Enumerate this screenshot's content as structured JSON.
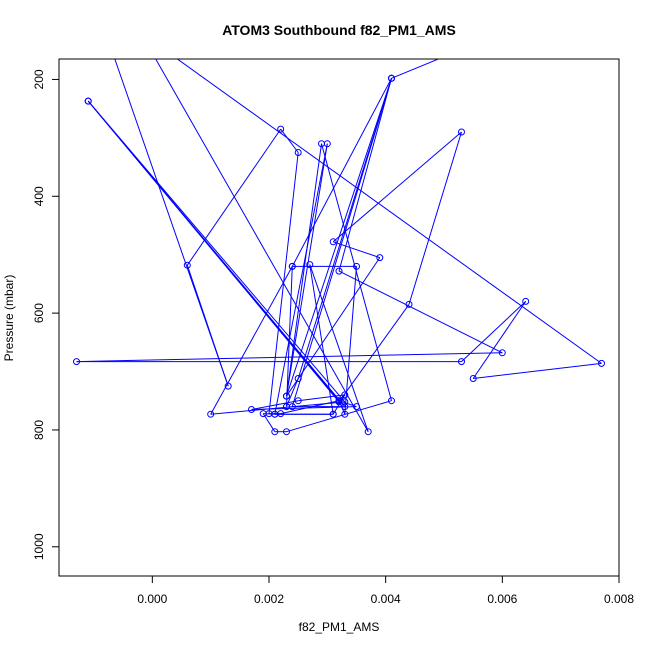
{
  "chart_data": {
    "type": "line",
    "title": "ATOM3 Southbound f82_PM1_AMS",
    "xlabel": "f82_PM1_AMS",
    "ylabel": "Pressure (mbar)",
    "xlim": [
      -0.0016,
      0.008
    ],
    "ylim": [
      1050,
      165
    ],
    "y_reversed": true,
    "x_ticks": [
      "0.000",
      "0.002",
      "0.004",
      "0.006",
      "0.008"
    ],
    "y_ticks": [
      "200",
      "400",
      "600",
      "800",
      "1000"
    ],
    "grid": false,
    "legend": "none",
    "series": [
      {
        "color": "#0000ff",
        "marker": "open-circle",
        "points": [
          [
            -0.0008,
            120
          ],
          [
            0.0013,
            725
          ],
          [
            0.0006,
            518
          ],
          [
            0.0022,
            285
          ],
          [
            0.0025,
            325
          ],
          [
            0.002,
            772
          ],
          [
            0.0022,
            772
          ],
          [
            0.0032,
            750
          ],
          [
            0.0035,
            760
          ],
          [
            0.0017,
            765
          ],
          [
            0.0025,
            750
          ],
          [
            0.0033,
            740
          ],
          [
            0.0031,
            773
          ],
          [
            0.0021,
            773
          ],
          [
            0.003,
            310
          ],
          [
            0.0023,
            742
          ],
          [
            0.0041,
            198
          ],
          [
            0.0032,
            528
          ],
          [
            0.006,
            668
          ],
          [
            -0.0013,
            683
          ],
          [
            0.0053,
            683
          ],
          [
            0.0064,
            580
          ],
          [
            0.0055,
            712
          ],
          [
            0.0077,
            686
          ],
          [
            -0.0002,
            120
          ],
          [
            0.0037,
            803
          ],
          [
            0.0027,
            517
          ],
          [
            0.0031,
            773
          ],
          [
            0.0021,
            773
          ],
          [
            0.0019,
            772
          ],
          [
            0.0021,
            803
          ],
          [
            0.0023,
            803
          ],
          [
            0.0041,
            750
          ],
          [
            0.0029,
            310
          ],
          [
            0.0023,
            742
          ],
          [
            0.0039,
            505
          ],
          [
            0.0031,
            478
          ],
          [
            0.0053,
            290
          ],
          [
            0.0044,
            585
          ],
          [
            0.0032,
            752
          ],
          [
            -0.0011,
            237
          ],
          [
            0.0033,
            752
          ],
          [
            0.001,
            773
          ],
          [
            0.0024,
            520
          ],
          [
            0.0023,
            760
          ],
          [
            0.0025,
            712
          ],
          [
            0.0041,
            198
          ],
          [
            0.0024,
            520
          ],
          [
            0.0035,
            520
          ],
          [
            0.0033,
            773
          ],
          [
            0.0032,
            750
          ],
          [
            -0.0011,
            237
          ],
          [
            0.0033,
            760
          ],
          [
            0.0024,
            760
          ],
          [
            0.0041,
            198
          ],
          [
            0.006,
            120
          ]
        ]
      }
    ]
  }
}
